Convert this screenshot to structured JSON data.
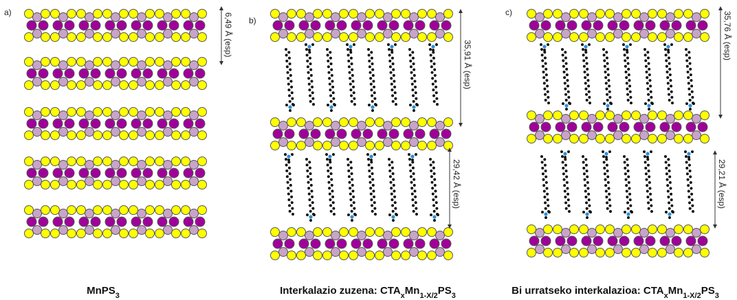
{
  "panels": [
    {
      "label": "a)",
      "distances": [
        "6,49 Å (esp)"
      ],
      "caption": [
        {
          "text": "MnPS"
        },
        {
          "text": "3",
          "sub": true
        }
      ]
    },
    {
      "label": "b)",
      "distances": [
        "35,91 Å (esp)",
        "29,42 Å (esp)"
      ],
      "caption": [
        {
          "text": "Interkalazio zuzena: CTA"
        },
        {
          "text": "x",
          "sub": true
        },
        {
          "text": "Mn"
        },
        {
          "text": "1-X/2",
          "sub": true
        },
        {
          "text": "PS"
        },
        {
          "text": "3",
          "sub": true
        }
      ]
    },
    {
      "label": "c)",
      "distances": [
        "35,76 Å (esp)",
        "29,21 Å (esp)"
      ],
      "caption": [
        {
          "text": "Bi urratseko interkalazioa: CTA"
        },
        {
          "text": "x",
          "sub": true
        },
        {
          "text": "Mn"
        },
        {
          "text": "1-X/2",
          "sub": true
        },
        {
          "text": "PS"
        },
        {
          "text": "3",
          "sub": true
        }
      ]
    }
  ]
}
